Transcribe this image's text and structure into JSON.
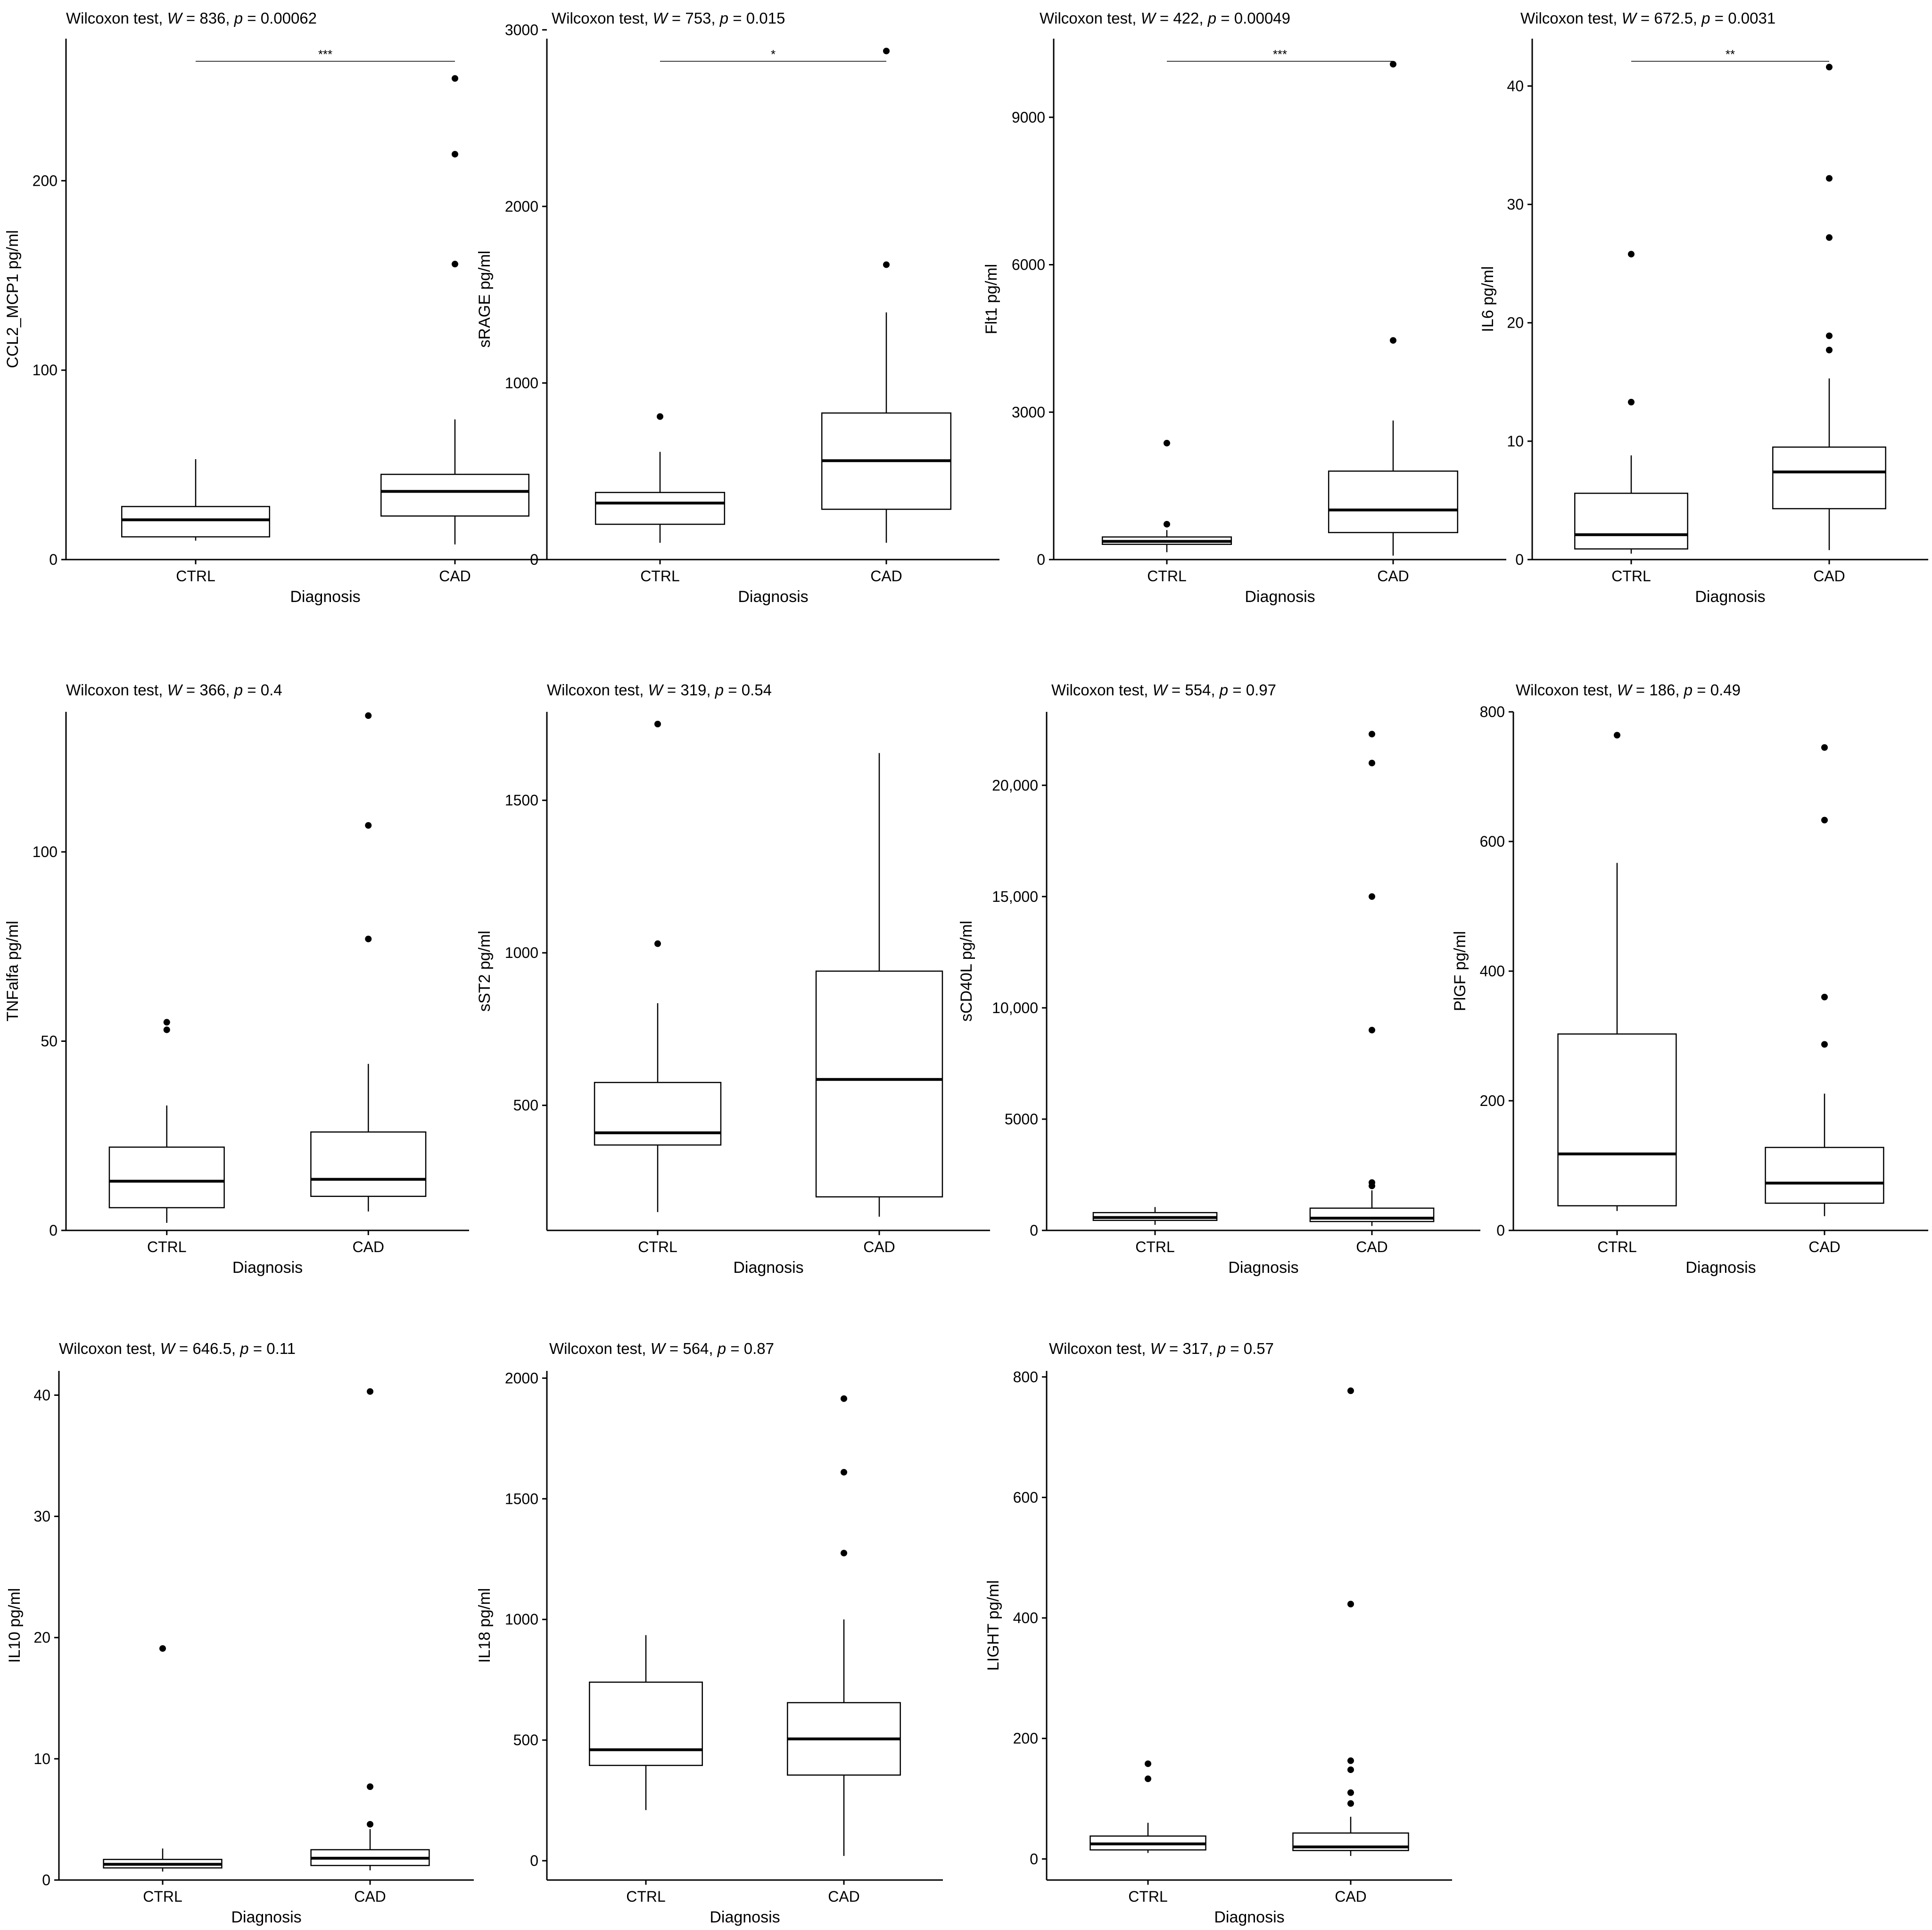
{
  "chart_data": [
    {
      "type": "box",
      "title": "Wilcoxon test, W = 836, p = 0.00062",
      "title_parts": [
        "Wilcoxon test, ",
        "W",
        " = 836, ",
        "p",
        " = 0.00062"
      ],
      "xlabel": "Diagnosis",
      "ylabel": "CCL2_MCP1 pg/ml",
      "ylim": [
        0,
        275
      ],
      "yticks": [
        0,
        100,
        200
      ],
      "ytick_labels": [
        "0",
        "100",
        "200"
      ],
      "significance": "***",
      "groups": [
        {
          "name": "CTRL",
          "whisker_low": 10,
          "q1": 12,
          "median": 21,
          "q3": 28,
          "whisker_high": 53,
          "outliers": []
        },
        {
          "name": "CAD",
          "whisker_low": 8,
          "q1": 23,
          "median": 36,
          "q3": 45,
          "whisker_high": 74,
          "outliers": [
            156,
            214,
            254
          ]
        }
      ]
    },
    {
      "type": "box",
      "title": "Wilcoxon test, W = 753, p = 0.015",
      "title_parts": [
        "Wilcoxon test, ",
        "W",
        " = 753, ",
        "p",
        " = 0.015"
      ],
      "xlabel": "Diagnosis",
      "ylabel": "sRAGE pg/ml",
      "ylim": [
        0,
        2950
      ],
      "yticks": [
        0,
        1000,
        2000,
        3000
      ],
      "ytick_labels": [
        "0",
        "1000",
        "2000",
        "3000"
      ],
      "significance": "*",
      "groups": [
        {
          "name": "CTRL",
          "whisker_low": 95,
          "q1": 200,
          "median": 320,
          "q3": 380,
          "whisker_high": 610,
          "outliers": [
            810
          ]
        },
        {
          "name": "CAD",
          "whisker_low": 95,
          "q1": 285,
          "median": 560,
          "q3": 830,
          "whisker_high": 1400,
          "outliers": [
            1670,
            2880
          ]
        }
      ]
    },
    {
      "type": "box",
      "title": "Wilcoxon test, W = 422, p = 0.00049",
      "title_parts": [
        "Wilcoxon test, ",
        "W",
        " = 422, ",
        "p",
        " = 0.00049"
      ],
      "xlabel": "Diagnosis",
      "ylabel": "Flt1 pg/ml",
      "ylim": [
        0,
        10600
      ],
      "yticks": [
        0,
        3000,
        6000,
        9000
      ],
      "ytick_labels": [
        "0",
        "3000",
        "6000",
        "9000"
      ],
      "significance": "***",
      "groups": [
        {
          "name": "CTRL",
          "whisker_low": 150,
          "q1": 310,
          "median": 370,
          "q3": 460,
          "whisker_high": 600,
          "outliers": [
            720,
            2370
          ]
        },
        {
          "name": "CAD",
          "whisker_low": 80,
          "q1": 550,
          "median": 1010,
          "q3": 1800,
          "whisker_high": 2830,
          "outliers": [
            4460,
            10080
          ]
        }
      ]
    },
    {
      "type": "box",
      "title": "Wilcoxon test, W = 672.5, p = 0.0031",
      "title_parts": [
        "Wilcoxon test, ",
        "W",
        " = 672.5, ",
        "p",
        " = 0.0031"
      ],
      "xlabel": "Diagnosis",
      "ylabel": "IL6 pg/ml",
      "ylim": [
        0,
        44
      ],
      "yticks": [
        0,
        10,
        20,
        30,
        40
      ],
      "ytick_labels": [
        "0",
        "10",
        "20",
        "30",
        "40"
      ],
      "significance": "**",
      "groups": [
        {
          "name": "CTRL",
          "whisker_low": 0.5,
          "q1": 0.9,
          "median": 2.1,
          "q3": 5.6,
          "whisker_high": 8.8,
          "outliers": [
            13.3,
            25.8
          ]
        },
        {
          "name": "CAD",
          "whisker_low": 0.8,
          "q1": 4.3,
          "median": 7.4,
          "q3": 9.5,
          "whisker_high": 15.3,
          "outliers": [
            17.7,
            18.9,
            27.2,
            32.2,
            41.6
          ]
        }
      ]
    },
    {
      "type": "box",
      "title": "Wilcoxon test, W = 366, p = 0.4",
      "title_parts": [
        "Wilcoxon test, ",
        "W",
        " = 366, ",
        "p",
        " = 0.4"
      ],
      "xlabel": "Diagnosis",
      "ylabel": "TNFalfa pg/ml",
      "ylim": [
        0,
        137
      ],
      "yticks": [
        0,
        50,
        100
      ],
      "ytick_labels": [
        "0",
        "50",
        "100"
      ],
      "significance": "",
      "groups": [
        {
          "name": "CTRL",
          "whisker_low": 2,
          "q1": 6,
          "median": 13,
          "q3": 22,
          "whisker_high": 33,
          "outliers": [
            53,
            55
          ]
        },
        {
          "name": "CAD",
          "whisker_low": 5,
          "q1": 9,
          "median": 13.5,
          "q3": 26,
          "whisker_high": 44,
          "outliers": [
            77,
            107,
            136
          ]
        }
      ]
    },
    {
      "type": "box",
      "title": "Wilcoxon test, W = 319, p = 0.54",
      "title_parts": [
        "Wilcoxon test, ",
        "W",
        " = 319, ",
        "p",
        " = 0.54"
      ],
      "xlabel": "Diagnosis",
      "ylabel": "sST2 pg/ml",
      "ylim": [
        90,
        1790
      ],
      "yticks": [
        500,
        1000,
        1500
      ],
      "ytick_labels": [
        "500",
        "1000",
        "1500"
      ],
      "significance": "",
      "groups": [
        {
          "name": "CTRL",
          "whisker_low": 150,
          "q1": 370,
          "median": 410,
          "q3": 575,
          "whisker_high": 835,
          "outliers": [
            1030,
            1750
          ]
        },
        {
          "name": "CAD",
          "whisker_low": 135,
          "q1": 200,
          "median": 585,
          "q3": 940,
          "whisker_high": 1655,
          "outliers": []
        }
      ]
    },
    {
      "type": "box",
      "title": "Wilcoxon test, W = 554, p = 0.97",
      "title_parts": [
        "Wilcoxon test, ",
        "W",
        " = 554, ",
        "p",
        " = 0.97"
      ],
      "xlabel": "Diagnosis",
      "ylabel": "sCD40L pg/ml",
      "ylim": [
        0,
        23300
      ],
      "yticks": [
        0,
        5000,
        10000,
        15000,
        20000
      ],
      "ytick_labels": [
        "0",
        "5000",
        "10,000",
        "15,000",
        "20,000"
      ],
      "significance": "",
      "groups": [
        {
          "name": "CTRL",
          "whisker_low": 250,
          "q1": 450,
          "median": 580,
          "q3": 800,
          "whisker_high": 1050,
          "outliers": []
        },
        {
          "name": "CAD",
          "whisker_low": 200,
          "q1": 400,
          "median": 550,
          "q3": 1000,
          "whisker_high": 1800,
          "outliers": [
            2000,
            2150,
            9000,
            15000,
            21000,
            22300
          ]
        }
      ]
    },
    {
      "type": "box",
      "title": "Wilcoxon test, W = 186, p = 0.49",
      "title_parts": [
        "Wilcoxon test, ",
        "W",
        " = 186, ",
        "p",
        " = 0.49"
      ],
      "xlabel": "Diagnosis",
      "ylabel": "PlGF pg/ml",
      "ylim": [
        0,
        800
      ],
      "yticks": [
        0,
        200,
        400,
        600,
        800
      ],
      "ytick_labels": [
        "0",
        "200",
        "400",
        "600",
        "800"
      ],
      "significance": "",
      "groups": [
        {
          "name": "CTRL",
          "whisker_low": 30,
          "q1": 38,
          "median": 118,
          "q3": 303,
          "whisker_high": 567,
          "outliers": [
            764
          ]
        },
        {
          "name": "CAD",
          "whisker_low": 22,
          "q1": 42,
          "median": 73,
          "q3": 128,
          "whisker_high": 211,
          "outliers": [
            287,
            360,
            633,
            745
          ]
        }
      ]
    },
    {
      "type": "box",
      "title": "Wilcoxon test, W = 646.5, p = 0.11",
      "title_parts": [
        "Wilcoxon test, ",
        "W",
        " = 646.5, ",
        "p",
        " = 0.11"
      ],
      "xlabel": "Diagnosis",
      "ylabel": "IL10 pg/ml",
      "ylim": [
        0,
        42
      ],
      "yticks": [
        0,
        10,
        20,
        30,
        40
      ],
      "ytick_labels": [
        "0",
        "10",
        "20",
        "30",
        "40"
      ],
      "significance": "",
      "groups": [
        {
          "name": "CTRL",
          "whisker_low": 0.7,
          "q1": 1.0,
          "median": 1.3,
          "q3": 1.7,
          "whisker_high": 2.6,
          "outliers": [
            19.1
          ]
        },
        {
          "name": "CAD",
          "whisker_low": 0.8,
          "q1": 1.2,
          "median": 1.8,
          "q3": 2.5,
          "whisker_high": 4.2,
          "outliers": [
            4.6,
            7.7,
            40.3
          ]
        }
      ]
    },
    {
      "type": "box",
      "title": "Wilcoxon test, W = 564, p = 0.87",
      "title_parts": [
        "Wilcoxon test, ",
        "W",
        " = 564, ",
        "p",
        " = 0.87"
      ],
      "xlabel": "Diagnosis",
      "ylabel": "IL18 pg/ml",
      "ylim": [
        -80,
        2030
      ],
      "yticks": [
        0,
        500,
        1000,
        1500,
        2000
      ],
      "ytick_labels": [
        "0",
        "500",
        "1000",
        "1500",
        "2000"
      ],
      "significance": "",
      "groups": [
        {
          "name": "CTRL",
          "whisker_low": 210,
          "q1": 395,
          "median": 460,
          "q3": 740,
          "whisker_high": 935,
          "outliers": []
        },
        {
          "name": "CAD",
          "whisker_low": 20,
          "q1": 355,
          "median": 505,
          "q3": 655,
          "whisker_high": 1000,
          "outliers": [
            1275,
            1610,
            1915
          ]
        }
      ]
    },
    {
      "type": "box",
      "title": "Wilcoxon test, W = 317, p = 0.57",
      "title_parts": [
        "Wilcoxon test, ",
        "W",
        " = 317, ",
        "p",
        " = 0.57"
      ],
      "xlabel": "Diagnosis",
      "ylabel": "LIGHT pg/ml",
      "ylim": [
        -35,
        810
      ],
      "yticks": [
        0,
        200,
        400,
        600,
        800
      ],
      "ytick_labels": [
        "0",
        "200",
        "400",
        "600",
        "800"
      ],
      "significance": "",
      "groups": [
        {
          "name": "CTRL",
          "whisker_low": 10,
          "q1": 15,
          "median": 25,
          "q3": 38,
          "whisker_high": 60,
          "outliers": [
            133,
            158
          ]
        },
        {
          "name": "CAD",
          "whisker_low": 5,
          "q1": 14,
          "median": 20,
          "q3": 43,
          "whisker_high": 70,
          "outliers": [
            92,
            110,
            148,
            163,
            423,
            777
          ]
        }
      ]
    }
  ]
}
